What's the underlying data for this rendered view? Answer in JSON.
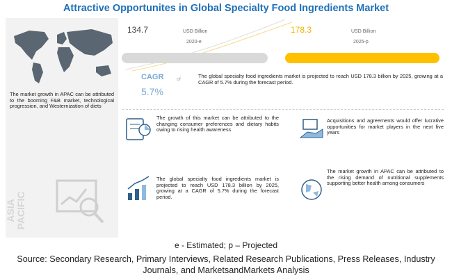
{
  "header": {
    "title": "Attractive Opportunites in Global Specialty Food Ingredients Market"
  },
  "left_panel": {
    "text": "The market growth in APAC can be attributed to the booming F&B market, technological progression, and Westernization of diets",
    "region": [
      "ASIA",
      "PACIFIC"
    ]
  },
  "market": {
    "start": {
      "value": "134.7",
      "unit": "USD Billion",
      "year": "2020-e"
    },
    "end": {
      "value": "178.3",
      "unit": "USD Billion",
      "year": "2025-p"
    },
    "cagr_label": "CAGR",
    "cagr_value": "5.7%",
    "of": "of",
    "summary": "The global specialty food ingredients market is projected to reach USD 178.3 billion by 2025, growing at a CAGR of 5.7% during the forecast period."
  },
  "insights": [
    "The growth of this market can be attributed to the changing consumer preferences and dietary habits owing to rising health awareness",
    "Acquisitions and agreements would offer lucrative opportunities for market players in the next five years",
    "The global specialty food ingredients market is projected to reach USD 178.3 billion by 2025, growing at a CAGR of 5.7% during the forecast period.",
    "The market growth in APAC can be attributed to the rising demand of nutritional supplements supporting better health among consumers"
  ],
  "footer": {
    "note": "e - Estimated; p – Projected",
    "source": "Source: Secondary Research, Primary Interviews, Related Research Publications, Press Releases, Industry Journals, and MarketsandMarkets Analysis"
  }
}
